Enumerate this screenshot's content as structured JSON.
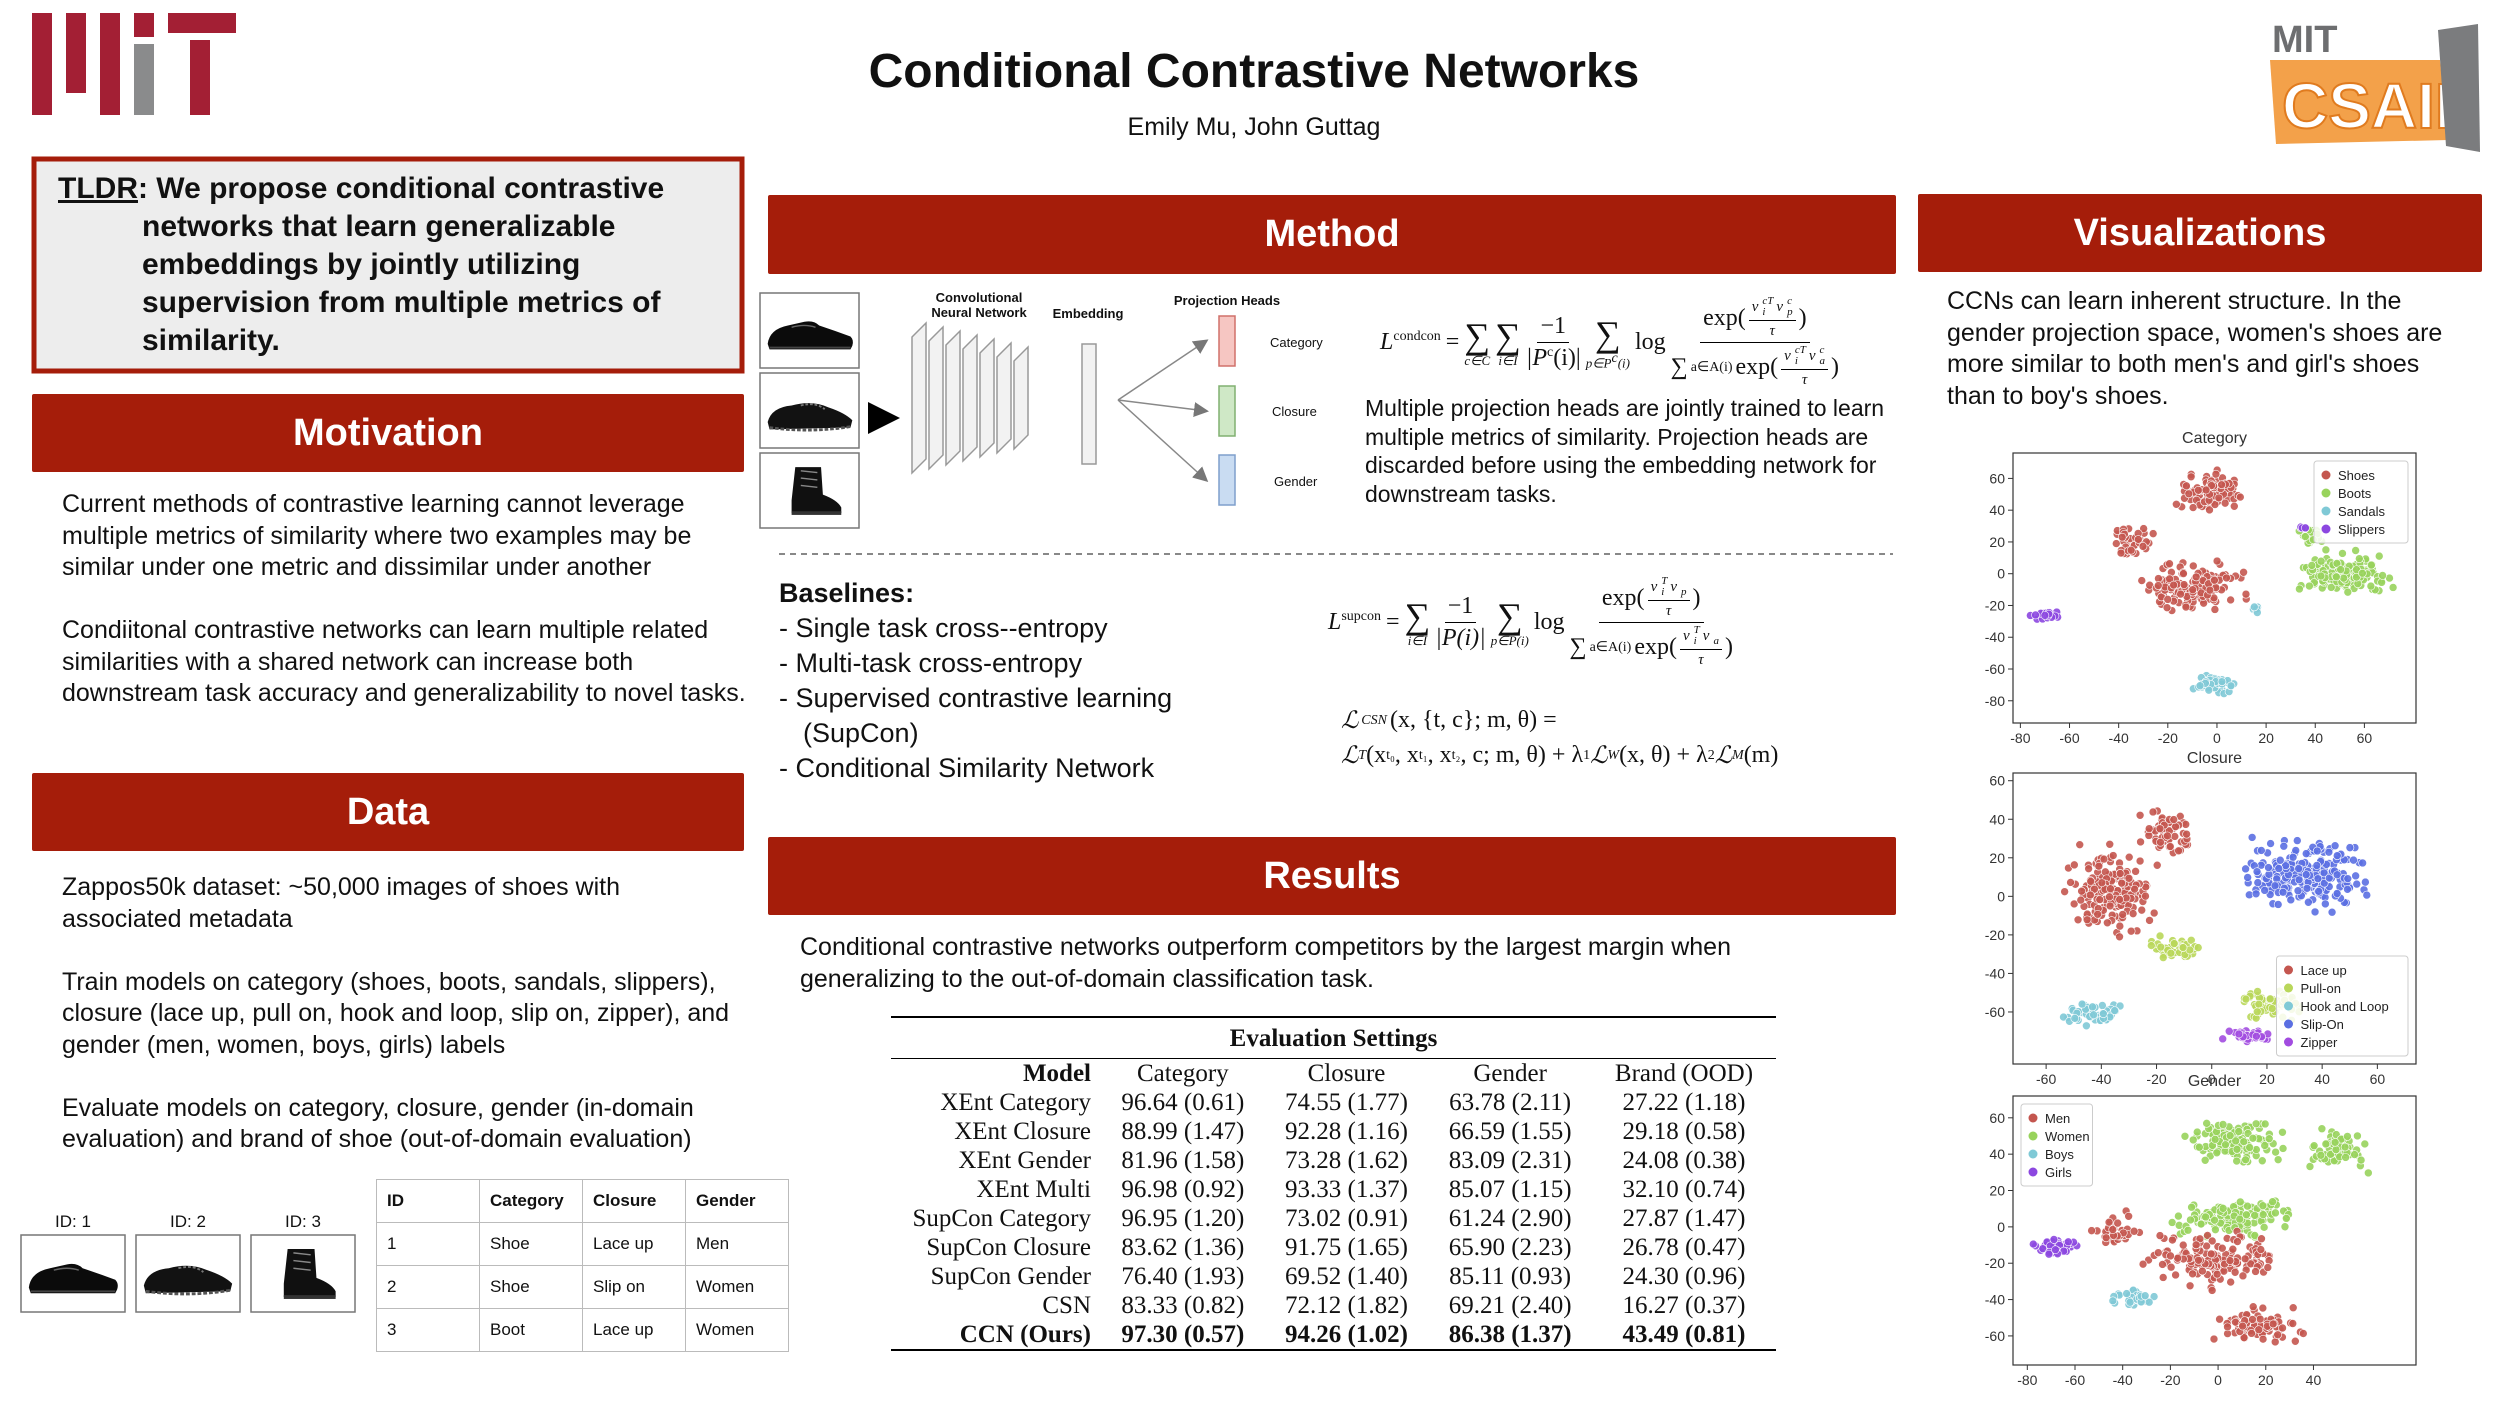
{
  "logos": {
    "csail_top": "MIT",
    "csail": "CSAIL"
  },
  "header": {
    "title": "Conditional Contrastive Networks",
    "authors": "Emily Mu, John Guttag"
  },
  "tldr": {
    "label": "TLDR",
    "text": ": We propose conditional contrastive networks that learn generalizable embeddings by jointly utilizing supervision from multiple metrics of similarity."
  },
  "motivation": {
    "heading": "Motivation",
    "paragraphs": [
      "Current methods of contrastive learning cannot leverage multiple metrics of similarity where two examples may be similar under one metric and dissimilar under another",
      "Condiitonal contrastive networks can learn multiple related similarities with a shared network can increase both downstream task accuracy and generalizability to novel tasks."
    ]
  },
  "data": {
    "heading": "Data",
    "paragraphs": [
      "Zappos50k dataset: ~50,000 images of shoes with associated metadata",
      "Train models on category (shoes, boots, sandals, slippers), closure (lace up, pull on, hook and loop, slip on, zipper), and gender (men, women, boys, girls) labels",
      "Evaluate models on category, closure, gender (in-domain evaluation)  and brand of shoe (out-of-domain evaluation)"
    ],
    "examples": {
      "ids": [
        "ID: 1",
        "ID: 2",
        "ID: 3"
      ],
      "table": {
        "columns": [
          "ID",
          "Category",
          "Closure",
          "Gender"
        ],
        "rows": [
          [
            "1",
            "Shoe",
            "Lace up",
            "Men"
          ],
          [
            "2",
            "Shoe",
            "Slip on",
            "Women"
          ],
          [
            "3",
            "Boot",
            "Lace up",
            "Women"
          ]
        ]
      }
    }
  },
  "method": {
    "heading": "Method",
    "diagram": {
      "network": "Convolutional Neural Network",
      "embedding": "Embedding",
      "heads": "Projection Heads",
      "head_labels": [
        "Category",
        "Closure",
        "Gender"
      ]
    },
    "description": "Multiple projection heads are jointly trained to learn multiple metrics of similarity. Projection heads are discarded before using the embedding network for downstream tasks.",
    "baselines": {
      "heading": "Baselines:",
      "items": [
        "-  Single task cross--entropy",
        "-  Multi-task cross-entropy",
        "-  Supervised contrastive learning (SupCon)",
        "-  Conditional Similarity Network"
      ]
    },
    "formulas": [
      [
        "L",
        "condcon",
        "=",
        "∑",
        "c∈C",
        "∑",
        "i∈I",
        "−1",
        "|P",
        "c",
        "(i)|",
        "∑",
        "p∈P",
        "c",
        "(i)",
        "log",
        "exp(",
        "v",
        "cT",
        "i",
        "v",
        "c",
        "p",
        "τ",
        ")",
        "∑",
        "a∈A(i)",
        "exp(",
        "v",
        "cT",
        "i",
        "v",
        "c",
        "a",
        "τ",
        ")"
      ],
      [
        "L",
        "supcon",
        "=",
        "∑",
        "i∈I",
        "−1",
        "|P(i)|",
        "∑",
        "p∈P(i)",
        "log",
        "exp(",
        "v",
        "T",
        "i",
        "v",
        "p",
        "τ",
        ")",
        "∑",
        "a∈A(i)",
        "exp(",
        "v",
        "T",
        "i",
        "v",
        "a",
        "τ",
        ")"
      ],
      [
        "ℒ",
        "CSN",
        "(x, {t, c}; m, θ) =",
        "ℒ",
        "T",
        "(x",
        "t₀",
        ", x",
        "t₁",
        ", x",
        "t₂",
        ", c; m, θ) + λ",
        "1",
        "ℒ",
        "W",
        "(x, θ) + λ",
        "2",
        "ℒ",
        "M",
        "(m)"
      ]
    ]
  },
  "results": {
    "heading": "Results",
    "text": "Conditional contrastive networks outperform competitors by the largest margin when generalizing to the out-of-domain classification task.",
    "table": {
      "caption": "Evaluation Settings",
      "columns": [
        "Model",
        "Category",
        "Closure",
        "Gender",
        "Brand (OOD)"
      ],
      "rows": [
        [
          "XEnt Category",
          "96.64 (0.61)",
          "74.55 (1.77)",
          "63.78 (2.11)",
          "27.22 (1.18)"
        ],
        [
          "XEnt Closure",
          "88.99 (1.47)",
          "92.28 (1.16)",
          "66.59 (1.55)",
          "29.18 (0.58)"
        ],
        [
          "XEnt Gender",
          "81.96 (1.58)",
          "73.28 (1.62)",
          "83.09 (2.31)",
          "24.08 (0.38)"
        ],
        [
          "XEnt Multi",
          "96.98 (0.92)",
          "93.33 (1.37)",
          "85.07 (1.15)",
          "32.10 (0.74)"
        ],
        [
          "SupCon Category",
          "96.95 (1.20)",
          "73.02 (0.91)",
          "61.24 (2.90)",
          "27.87 (1.47)"
        ],
        [
          "SupCon Closure",
          "83.62 (1.36)",
          "91.75 (1.65)",
          "65.90 (2.23)",
          "26.78 (0.47)"
        ],
        [
          "SupCon Gender",
          "76.40 (1.93)",
          "69.52 (1.40)",
          "85.11 (0.93)",
          "24.30 (0.96)"
        ],
        [
          "CSN",
          "83.33 (0.82)",
          "72.12 (1.82)",
          "69.21 (2.40)",
          "16.27 (0.37)"
        ],
        [
          "CCN (Ours)",
          "97.30 (0.57)",
          "94.26 (1.02)",
          "86.38 (1.37)",
          "43.49 (0.81)"
        ]
      ]
    }
  },
  "visualizations": {
    "heading": "Visualizations",
    "text": "CCNs can  learn inherent structure. In  the gender projection space, women's shoes are more similar to both men's and girl's shoes than to boy's shoes.",
    "plots": [
      {
        "title": "Category",
        "xlim": [
          -83,
          81
        ],
        "ylim": [
          -94,
          76
        ],
        "xticks": [
          -80,
          -60,
          -40,
          -20,
          0,
          20,
          40,
          60
        ],
        "yticks": [
          60,
          40,
          20,
          0,
          -20,
          -40,
          -60,
          -80
        ],
        "legend": "upper right",
        "series": [
          {
            "name": "Shoes",
            "color": "#c4564f"
          },
          {
            "name": "Boots",
            "color": "#98d35c"
          },
          {
            "name": "Sandals",
            "color": "#7fc9d6"
          },
          {
            "name": "Slippers",
            "color": "#8c47e0"
          }
        ]
      },
      {
        "title": "Closure",
        "xlim": [
          -72,
          74
        ],
        "ylim": [
          -87,
          64
        ],
        "xticks": [
          -60,
          -40,
          -20,
          0,
          20,
          40,
          60
        ],
        "yticks": [
          60,
          40,
          20,
          0,
          -20,
          -40,
          -60
        ],
        "legend": "lower right",
        "series": [
          {
            "name": "Lace up",
            "color": "#c4564f"
          },
          {
            "name": "Pull-on",
            "color": "#b9d75a"
          },
          {
            "name": "Hook and Loop",
            "color": "#7fc9d6"
          },
          {
            "name": "Slip-On",
            "color": "#5b6fe2"
          },
          {
            "name": "Zipper",
            "color": "#a24ce0"
          }
        ]
      },
      {
        "title": "Gender",
        "xlim": [
          -86,
          83
        ],
        "ylim": [
          -76,
          72
        ],
        "xticks": [
          -80,
          -60,
          -40,
          -20,
          0,
          20,
          40
        ],
        "yticks": [
          60,
          40,
          20,
          0,
          -20,
          -40,
          -60
        ],
        "legend": "upper left",
        "series": [
          {
            "name": "Men",
            "color": "#c4564f"
          },
          {
            "name": "Women",
            "color": "#98d35c"
          },
          {
            "name": "Boys",
            "color": "#7fc9d6"
          },
          {
            "name": "Girls",
            "color": "#8c47e0"
          }
        ]
      }
    ]
  }
}
